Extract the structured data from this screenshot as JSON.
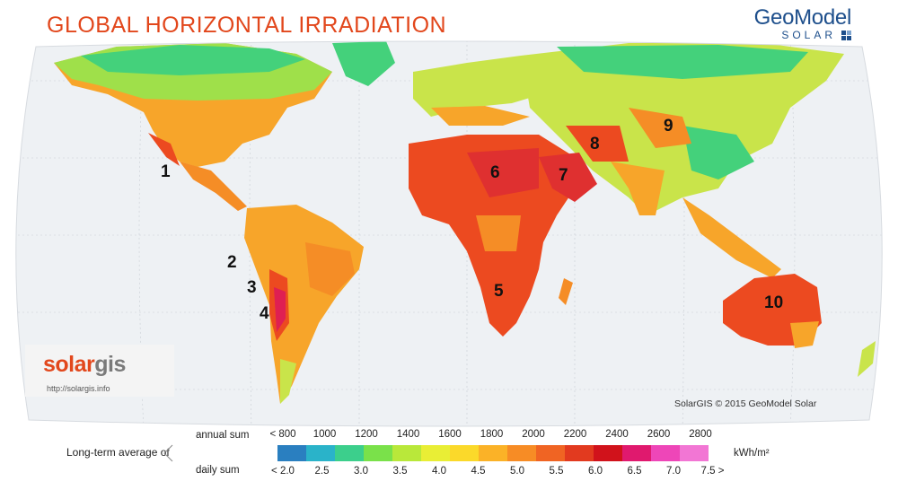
{
  "title": "GLOBAL HORIZONTAL IRRADIATION",
  "brand": {
    "name": "GeoModel",
    "sub": "SOLAR",
    "icon": "geomodel-squares-icon"
  },
  "solargis": {
    "logo_a": "solar",
    "logo_b": "gis",
    "url": "http://solargis.info"
  },
  "copyright": "SolarGIS © 2015 GeoModel Solar",
  "regions": [
    "1",
    "2",
    "3",
    "4",
    "5",
    "6",
    "7",
    "8",
    "9",
    "10"
  ],
  "legend": {
    "row_label": "Long-term average of",
    "annual_label": "annual sum",
    "daily_label": "daily sum",
    "annual_ticks": [
      "< 800",
      "1000",
      "1200",
      "1400",
      "1600",
      "1800",
      "2000",
      "2200",
      "2400",
      "2600",
      "2800"
    ],
    "daily_ticks": [
      "< 2.0",
      "2.5",
      "3.0",
      "3.5",
      "4.0",
      "4.5",
      "5.0",
      "5.5",
      "6.0",
      "6.5",
      "7.0",
      "7.5 >"
    ],
    "unit": "kWh/m²",
    "colors": [
      "#2a7fc0",
      "#2ab3c9",
      "#3ccf8c",
      "#7ae14a",
      "#b9e83a",
      "#e9ee35",
      "#fbd92a",
      "#fbb227",
      "#f78c25",
      "#f06423",
      "#e23a1f",
      "#d1121b",
      "#e0196e",
      "#ee46b8",
      "#f276d4"
    ]
  },
  "map_colors": {
    "ocean": "#eef1f4",
    "cold": "#44d17b",
    "mid": "#c9e44a",
    "warm": "#f7a52a",
    "hot": "#ec4a20",
    "extreme": "#df1f52"
  }
}
